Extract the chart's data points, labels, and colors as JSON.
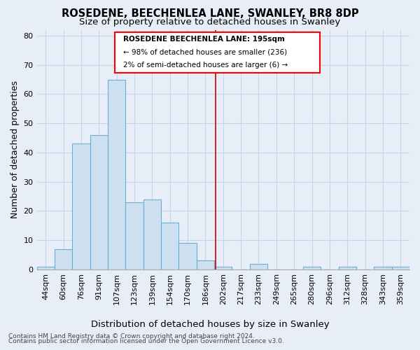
{
  "title": "ROSEDENE, BEECHENLEA LANE, SWANLEY, BR8 8DP",
  "subtitle": "Size of property relative to detached houses in Swanley",
  "xlabel": "Distribution of detached houses by size in Swanley",
  "ylabel": "Number of detached properties",
  "categories": [
    "44sqm",
    "60sqm",
    "76sqm",
    "91sqm",
    "107sqm",
    "123sqm",
    "139sqm",
    "154sqm",
    "170sqm",
    "186sqm",
    "202sqm",
    "217sqm",
    "233sqm",
    "249sqm",
    "265sqm",
    "280sqm",
    "296sqm",
    "312sqm",
    "328sqm",
    "343sqm",
    "359sqm"
  ],
  "values": [
    1,
    7,
    43,
    46,
    65,
    23,
    24,
    16,
    9,
    3,
    1,
    0,
    2,
    0,
    0,
    1,
    0,
    1,
    0,
    1,
    1
  ],
  "bar_color": "#cce0f0",
  "bar_edge_color": "#6aaed6",
  "marker_color": "#cc0000",
  "annotation_title": "ROSEDENE BEECHENLEA LANE: 195sqm",
  "annotation_line1": "← 98% of detached houses are smaller (236)",
  "annotation_line2": "2% of semi-detached houses are larger (6) →",
  "ylim": [
    0,
    82
  ],
  "yticks": [
    0,
    10,
    20,
    30,
    40,
    50,
    60,
    70,
    80
  ],
  "footer_line1": "Contains HM Land Registry data © Crown copyright and database right 2024.",
  "footer_line2": "Contains public sector information licensed under the Open Government Licence v3.0.",
  "bg_color": "#e8eef8",
  "grid_color": "#c8d4e8",
  "title_fontsize": 10.5,
  "subtitle_fontsize": 9.5,
  "axis_label_fontsize": 9,
  "tick_fontsize": 8,
  "footer_fontsize": 6.5
}
